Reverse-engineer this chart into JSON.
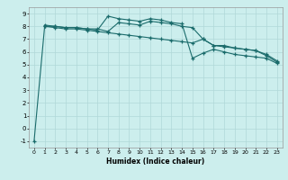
{
  "xlabel": "Humidex (Indice chaleur)",
  "bg_color": "#cceeed",
  "line_color": "#1a6b6b",
  "grid_color": "#b0d8d8",
  "xlim": [
    -0.5,
    23.5
  ],
  "ylim": [
    -1.5,
    9.5
  ],
  "yticks": [
    -1,
    0,
    1,
    2,
    3,
    4,
    5,
    6,
    7,
    8,
    9
  ],
  "xticks": [
    0,
    1,
    2,
    3,
    4,
    5,
    6,
    7,
    8,
    9,
    10,
    11,
    12,
    13,
    14,
    15,
    16,
    17,
    18,
    19,
    20,
    21,
    22,
    23
  ],
  "line1_x": [
    0,
    1,
    2,
    3,
    4,
    5,
    6,
    7,
    8,
    9,
    10,
    11,
    12,
    13,
    14,
    15,
    16,
    17,
    18,
    19,
    20,
    21,
    22,
    23
  ],
  "line1_y": [
    -1.0,
    8.0,
    8.0,
    7.9,
    7.9,
    7.8,
    7.7,
    8.8,
    8.6,
    8.5,
    8.4,
    8.6,
    8.5,
    8.3,
    8.2,
    5.5,
    5.9,
    6.2,
    6.0,
    5.8,
    5.7,
    5.6,
    5.5,
    5.1
  ],
  "line2_x": [
    1,
    2,
    3,
    4,
    5,
    6,
    7,
    8,
    9,
    10,
    11,
    12,
    13,
    14,
    15,
    16,
    17,
    18,
    19,
    20,
    21,
    22,
    23
  ],
  "line2_y": [
    8.0,
    7.9,
    7.8,
    7.8,
    7.7,
    7.6,
    7.5,
    7.4,
    7.3,
    7.2,
    7.1,
    7.0,
    6.9,
    6.8,
    6.7,
    7.0,
    6.5,
    6.4,
    6.3,
    6.2,
    6.1,
    5.7,
    5.2
  ],
  "line3_x": [
    1,
    2,
    3,
    4,
    5,
    6,
    7,
    8,
    9,
    10,
    11,
    12,
    13,
    14,
    15,
    16,
    17,
    18,
    19,
    20,
    21,
    22,
    23
  ],
  "line3_y": [
    8.1,
    8.0,
    7.9,
    7.9,
    7.8,
    7.8,
    7.6,
    8.3,
    8.2,
    8.1,
    8.4,
    8.3,
    8.2,
    8.0,
    7.9,
    7.0,
    6.5,
    6.5,
    6.3,
    6.2,
    6.1,
    5.8,
    5.3
  ]
}
